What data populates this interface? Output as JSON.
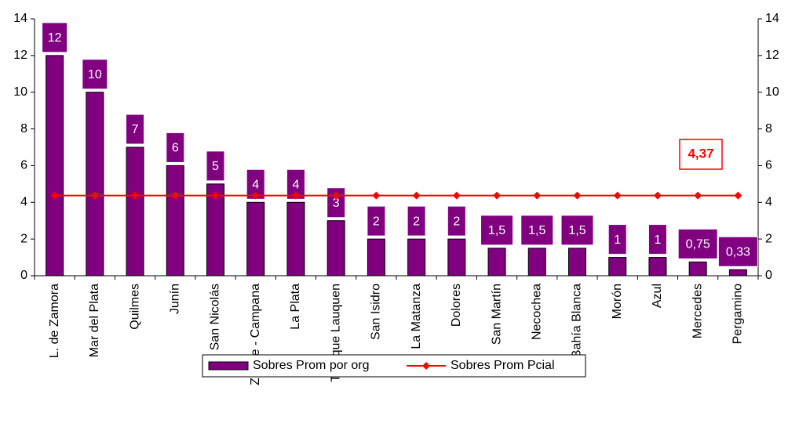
{
  "chart_data": {
    "type": "bar",
    "categories": [
      "L. de Zamora",
      "Mar del Plata",
      "Quilmes",
      "Junín",
      "San Nicolás",
      "Zárate - Campana",
      "La Plata",
      "Trenque Lauquen",
      "San Isidro",
      "La Matanza",
      "Dolores",
      "San Martín",
      "Necochea",
      "Bahía Blanca",
      "Morón",
      "Azul",
      "Mercedes",
      "Pergamino"
    ],
    "series": [
      {
        "name": "Sobres Prom por org",
        "type": "bar",
        "color": "#800080",
        "values": [
          12,
          10,
          7,
          6,
          5,
          4,
          4,
          3,
          2,
          2,
          2,
          1.5,
          1.5,
          1.5,
          1,
          1,
          0.75,
          0.33
        ],
        "value_labels": [
          "12",
          "10",
          "7",
          "6",
          "5",
          "4",
          "4",
          "3",
          "2",
          "2",
          "2",
          "1,5",
          "1,5",
          "1,5",
          "1",
          "1",
          "0,75",
          "0,33"
        ]
      },
      {
        "name": "Sobres Prom Pcial",
        "type": "line",
        "color": "#ff0000",
        "values": [
          4.37,
          4.37,
          4.37,
          4.37,
          4.37,
          4.37,
          4.37,
          4.37,
          4.37,
          4.37,
          4.37,
          4.37,
          4.37,
          4.37,
          4.37,
          4.37,
          4.37,
          4.37
        ]
      }
    ],
    "annotation": "4,37",
    "ylim": [
      0,
      14
    ],
    "yticks": [
      0,
      2,
      4,
      6,
      8,
      10,
      12,
      14
    ],
    "y2lim": [
      0,
      14
    ],
    "y2ticks": [
      0,
      2,
      4,
      6,
      8,
      10,
      12,
      14
    ],
    "grid": false,
    "legend": "bottom"
  }
}
